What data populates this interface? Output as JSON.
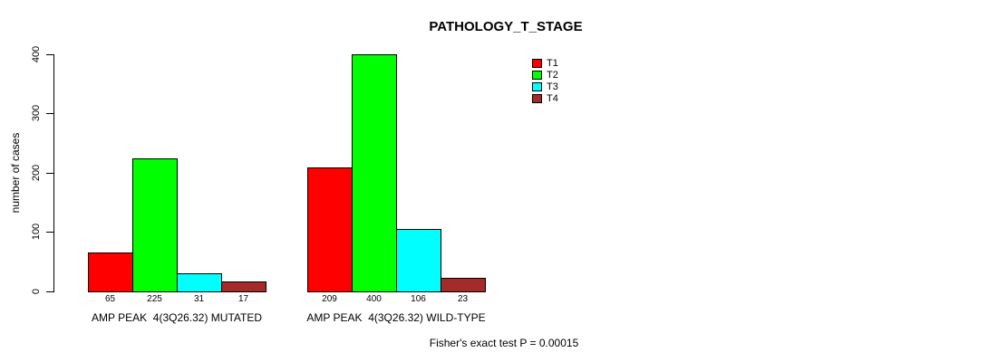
{
  "chart_data": {
    "type": "bar",
    "title": "PATHOLOGY_T_STAGE",
    "xlabel": "",
    "ylabel": "number of cases",
    "ylim": [
      0,
      400
    ],
    "yticks": [
      0,
      100,
      200,
      300,
      400
    ],
    "grid": false,
    "categories": [
      "AMP PEAK  4(3Q26.32) MUTATED",
      "AMP PEAK  4(3Q26.32) WILD-TYPE"
    ],
    "series": [
      {
        "name": "T1",
        "color": "#ff0000",
        "values": [
          65,
          209
        ]
      },
      {
        "name": "T2",
        "color": "#00ff00",
        "values": [
          225,
          400
        ]
      },
      {
        "name": "T3",
        "color": "#00ffff",
        "values": [
          31,
          106
        ]
      },
      {
        "name": "T4",
        "color": "#a52a2a",
        "values": [
          17,
          23
        ]
      }
    ],
    "bar_value_labels": [
      [
        "65",
        "225",
        "31",
        "17"
      ],
      [
        "209",
        "400",
        "106",
        "23"
      ]
    ],
    "legend": {
      "position": "top-right",
      "entries": [
        "T1",
        "T2",
        "T3",
        "T4"
      ]
    },
    "caption": "Fisher's exact test P = 0.00015"
  }
}
